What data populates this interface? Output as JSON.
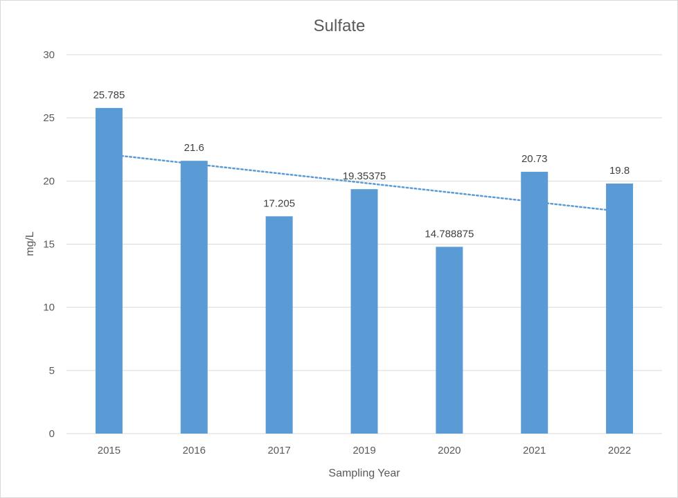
{
  "chart_data": {
    "type": "bar",
    "title": "Sulfate",
    "xlabel": "Sampling Year",
    "ylabel": "mg/L",
    "categories": [
      "2015",
      "2016",
      "2017",
      "2019",
      "2020",
      "2021",
      "2022"
    ],
    "values": [
      25.785,
      21.6,
      17.205,
      19.35375,
      14.788875,
      20.73,
      19.8
    ],
    "data_labels": [
      "25.785",
      "21.6",
      "17.205",
      "19.35375",
      "14.788875",
      "20.73",
      "19.8"
    ],
    "ylim": [
      0,
      30
    ],
    "yticks": [
      0,
      5,
      10,
      15,
      20,
      25,
      30
    ],
    "grid": true,
    "legend": "none",
    "trendline": {
      "type": "linear",
      "style": "dotted",
      "start": 22.1,
      "end": 17.6
    },
    "colors": {
      "bar": "#5b9bd5",
      "trendline": "#5b9bd5",
      "grid": "#d9d9d9",
      "text": "#595959"
    }
  }
}
